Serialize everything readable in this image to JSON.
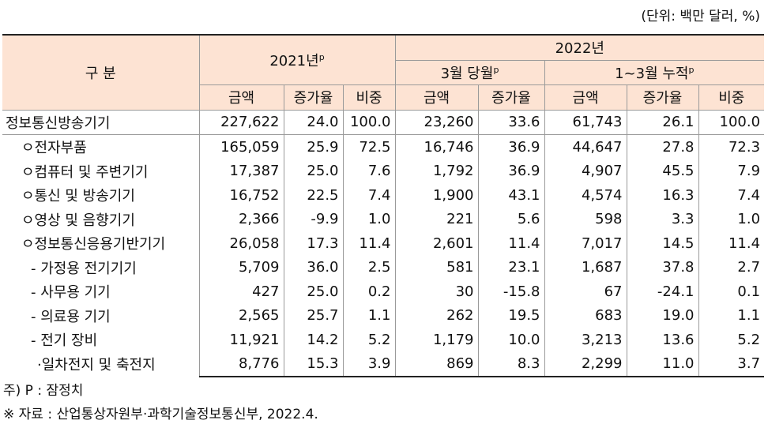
{
  "unit_note": "(단위: 백만 달러, %)",
  "header": {
    "category": "구  분",
    "y2021": "2021년",
    "y2021_sup": "p",
    "y2022": "2022년",
    "march": "3월 당월",
    "march_sup": "p",
    "cumulative": "1~3월 누적",
    "cumulative_sup": "p",
    "amount": "금액",
    "growth": "증가율",
    "share": "비중"
  },
  "rows": [
    {
      "label": "정보통신방송기기",
      "v": [
        "227,622",
        "24.0",
        "100.0",
        "23,260",
        "33.6",
        "61,743",
        "26.1",
        "100.0"
      ]
    },
    {
      "label": "ㅇ전자부품",
      "v": [
        "165,059",
        "25.9",
        "72.5",
        "16,746",
        "36.9",
        "44,647",
        "27.8",
        "72.3"
      ]
    },
    {
      "label": "ㅇ컴퓨터 및 주변기기",
      "v": [
        "17,387",
        "25.0",
        "7.6",
        "1,792",
        "36.9",
        "4,907",
        "45.5",
        "7.9"
      ]
    },
    {
      "label": "ㅇ통신 및 방송기기",
      "v": [
        "16,752",
        "22.5",
        "7.4",
        "1,900",
        "43.1",
        "4,574",
        "16.3",
        "7.4"
      ]
    },
    {
      "label": "ㅇ영상 및 음향기기",
      "v": [
        "2,366",
        "-9.9",
        "1.0",
        "221",
        "5.6",
        "598",
        "3.3",
        "1.0"
      ]
    },
    {
      "label": "ㅇ정보통신응용기반기기",
      "v": [
        "26,058",
        "17.3",
        "11.4",
        "2,601",
        "11.4",
        "7,017",
        "14.5",
        "11.4"
      ]
    },
    {
      "label": "- 가정용 전기기기",
      "v": [
        "5,709",
        "36.0",
        "2.5",
        "581",
        "23.1",
        "1,687",
        "37.8",
        "2.7"
      ]
    },
    {
      "label": "- 사무용 기기",
      "v": [
        "427",
        "25.0",
        "0.2",
        "30",
        "-15.8",
        "67",
        "-24.1",
        "0.1"
      ]
    },
    {
      "label": "- 의료용 기기",
      "v": [
        "2,565",
        "25.7",
        "1.1",
        "262",
        "19.5",
        "683",
        "19.0",
        "1.1"
      ]
    },
    {
      "label": "- 전기 장비",
      "v": [
        "11,921",
        "14.2",
        "5.2",
        "1,179",
        "10.0",
        "3,213",
        "13.6",
        "5.2"
      ]
    },
    {
      "label": "·일차전지 및 축전지",
      "v": [
        "8,776",
        "15.3",
        "3.9",
        "869",
        "8.3",
        "2,299",
        "11.0",
        "3.7"
      ]
    }
  ],
  "footnote": "주) P : 잠정치",
  "source": "※ 자료 : 산업통상자원부·과학기술정보통신부, 2022.4."
}
